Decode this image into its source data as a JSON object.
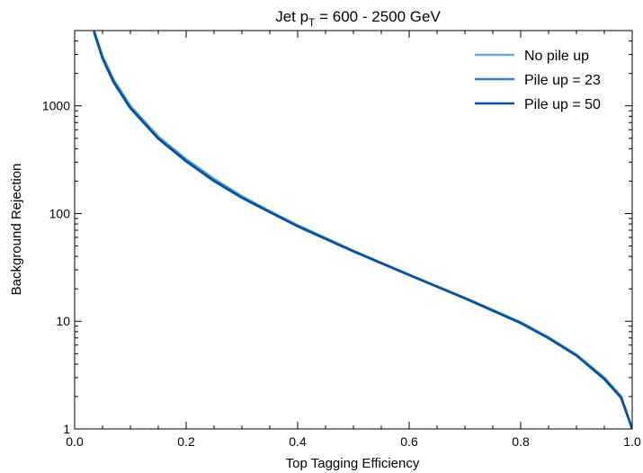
{
  "chart_data": {
    "type": "line",
    "title_main": "Jet p",
    "title_sub": "T",
    "title_rest": " = 600 - 2500 GeV",
    "xlabel": "Top Tagging Efficiency",
    "ylabel": "Background Rejection",
    "xlim": [
      0.0,
      1.0
    ],
    "ylim": [
      1,
      5000
    ],
    "yscale": "log",
    "grid": false,
    "legend_position": "top-right",
    "x_ticks": [
      {
        "value": 0.0,
        "label": "0.0"
      },
      {
        "value": 0.2,
        "label": "0.2"
      },
      {
        "value": 0.4,
        "label": "0.4"
      },
      {
        "value": 0.6,
        "label": "0.6"
      },
      {
        "value": 0.8,
        "label": "0.8"
      },
      {
        "value": 1.0,
        "label": "1.0"
      }
    ],
    "y_ticks": [
      {
        "value": 1,
        "label": "1"
      },
      {
        "value": 10,
        "label": "10"
      },
      {
        "value": 100,
        "label": "100"
      },
      {
        "value": 1000,
        "label": "1000"
      }
    ],
    "series": [
      {
        "name": "No pile up",
        "color": "#6aaed6",
        "x": [
          0.035,
          0.05,
          0.07,
          0.1,
          0.15,
          0.2,
          0.25,
          0.3,
          0.35,
          0.4,
          0.5,
          0.6,
          0.7,
          0.8,
          0.85,
          0.9,
          0.95,
          0.98,
          1.0
        ],
        "y": [
          5000,
          2900,
          1750,
          1000,
          520,
          320,
          210,
          145,
          105,
          78,
          45,
          27,
          16.5,
          9.8,
          7.1,
          4.9,
          3.0,
          2.0,
          1.0
        ]
      },
      {
        "name": "Pile up = 23",
        "color": "#3182bd",
        "x": [
          0.035,
          0.05,
          0.07,
          0.1,
          0.15,
          0.2,
          0.25,
          0.3,
          0.35,
          0.4,
          0.5,
          0.6,
          0.7,
          0.8,
          0.85,
          0.9,
          0.95,
          0.98,
          1.0
        ],
        "y": [
          4900,
          2800,
          1700,
          970,
          505,
          312,
          205,
          142,
          104,
          77,
          45,
          27,
          16.4,
          9.7,
          7.0,
          4.85,
          2.95,
          2.0,
          1.0
        ]
      },
      {
        "name": "Pile up = 50",
        "color": "#08519c",
        "x": [
          0.035,
          0.05,
          0.07,
          0.1,
          0.15,
          0.2,
          0.25,
          0.3,
          0.35,
          0.4,
          0.5,
          0.6,
          0.7,
          0.8,
          0.85,
          0.9,
          0.95,
          0.98,
          1.0
        ],
        "y": [
          4800,
          2750,
          1650,
          950,
          495,
          305,
          200,
          140,
          103,
          76,
          44.5,
          26.8,
          16.3,
          9.6,
          6.95,
          4.8,
          2.9,
          1.95,
          1.0
        ]
      }
    ]
  }
}
